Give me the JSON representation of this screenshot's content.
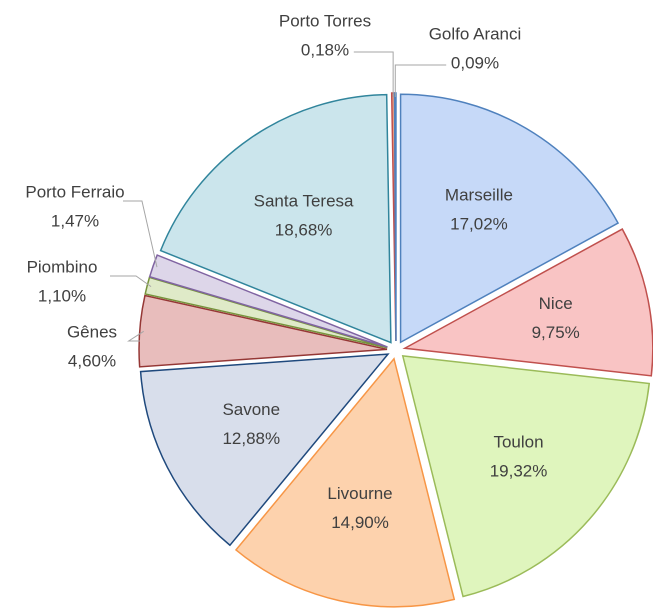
{
  "chart_data": {
    "type": "pie",
    "categories": [
      "Marseille",
      "Nice",
      "Toulon",
      "Livourne",
      "Savone",
      "Gênes",
      "Piombino",
      "Porto Ferraio",
      "Santa Teresa",
      "Porto Torres",
      "Golfo Aranci"
    ],
    "values": [
      17.02,
      9.75,
      19.32,
      14.9,
      12.88,
      4.6,
      1.1,
      1.47,
      18.68,
      0.18,
      0.09
    ],
    "value_labels": [
      "17,02%",
      "9,75%",
      "19,32%",
      "14,90%",
      "12,88%",
      "4,60%",
      "1,10%",
      "1,47%",
      "18,68%",
      "0,18%",
      "0,09%"
    ],
    "colors": [
      "#c6d9f8",
      "#f9c4c4",
      "#dff5bd",
      "#fdd2ad",
      "#d8deeb",
      "#e8bdbc",
      "#dfeac8",
      "#ddd6e9",
      "#cbe5ec",
      "#e9a98c",
      "#b9cce4"
    ],
    "borders": [
      "#4f81bd",
      "#c0504d",
      "#9bbb59",
      "#f79646",
      "#1f497d",
      "#953735",
      "#77933c",
      "#8064a2",
      "#31859c",
      "#c0504d",
      "#4f81bd"
    ]
  }
}
